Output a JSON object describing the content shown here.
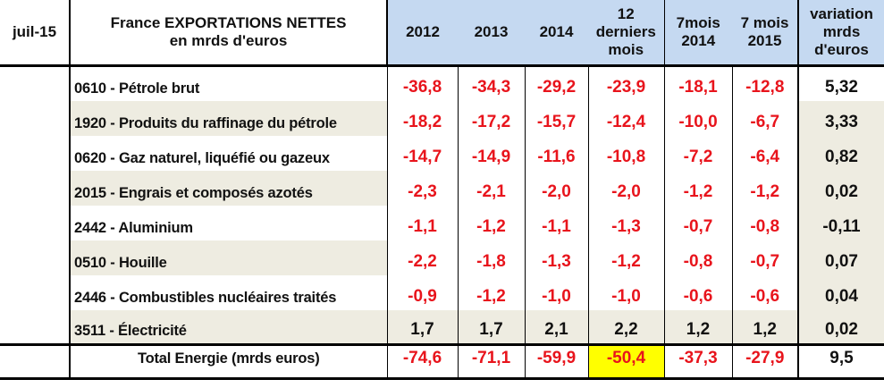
{
  "header": {
    "date": "juil-15",
    "title_line1": "France EXPORTATIONS NETTES",
    "title_line2": "en mrds d'euros",
    "columns": [
      [
        "2012"
      ],
      [
        "2013"
      ],
      [
        "2014"
      ],
      [
        "12",
        "derniers",
        "mois"
      ],
      [
        "7mois",
        "2014"
      ],
      [
        "7 mois",
        "2015"
      ],
      [
        "variation",
        "mrds",
        "d'euros"
      ]
    ]
  },
  "rows": [
    {
      "label": "0610 - Pétrole brut",
      "values": [
        "-36,8",
        "-34,3",
        "-29,2",
        "-23,9",
        "-18,1",
        "-12,8"
      ],
      "variation": "5,32"
    },
    {
      "label": "1920 - Produits du raffinage du pétrole",
      "values": [
        "-18,2",
        "-17,2",
        "-15,7",
        "-12,4",
        "-10,0",
        "-6,7"
      ],
      "variation": "3,33"
    },
    {
      "label": "0620 - Gaz naturel, liquéfié ou gazeux",
      "values": [
        "-14,7",
        "-14,9",
        "-11,6",
        "-10,8",
        "-7,2",
        "-6,4"
      ],
      "variation": "0,82"
    },
    {
      "label": "2015 - Engrais et composés azotés",
      "values": [
        "-2,3",
        "-2,1",
        "-2,0",
        "-2,0",
        "-1,2",
        "-1,2"
      ],
      "variation": "0,02"
    },
    {
      "label": "2442 - Aluminium",
      "values": [
        "-1,1",
        "-1,2",
        "-1,1",
        "-1,3",
        "-0,7",
        "-0,8"
      ],
      "variation": "-0,11"
    },
    {
      "label": "0510 - Houille",
      "values": [
        "-2,2",
        "-1,8",
        "-1,3",
        "-1,2",
        "-0,8",
        "-0,7"
      ],
      "variation": "0,07"
    },
    {
      "label": "2446 - Combustibles nucléaires traités",
      "values": [
        "-0,9",
        "-1,2",
        "-1,0",
        "-1,0",
        "-0,6",
        "-0,6"
      ],
      "variation": "0,04"
    },
    {
      "label": "3511 - Électricité",
      "values": [
        "1,7",
        "1,7",
        "2,1",
        "2,2",
        "1,2",
        "1,2"
      ],
      "variation": "0,02"
    }
  ],
  "total": {
    "label": "Total Energie (mrds euros)",
    "values": [
      "-74,6",
      "-71,1",
      "-59,9",
      "-50,4",
      "-37,3",
      "-27,9"
    ],
    "variation": "9,5",
    "highlight_color": "#ffff00"
  },
  "colors": {
    "negative": "#e8141c",
    "header_blue": "#c5d9f1",
    "row_shade": "#eeece1"
  }
}
